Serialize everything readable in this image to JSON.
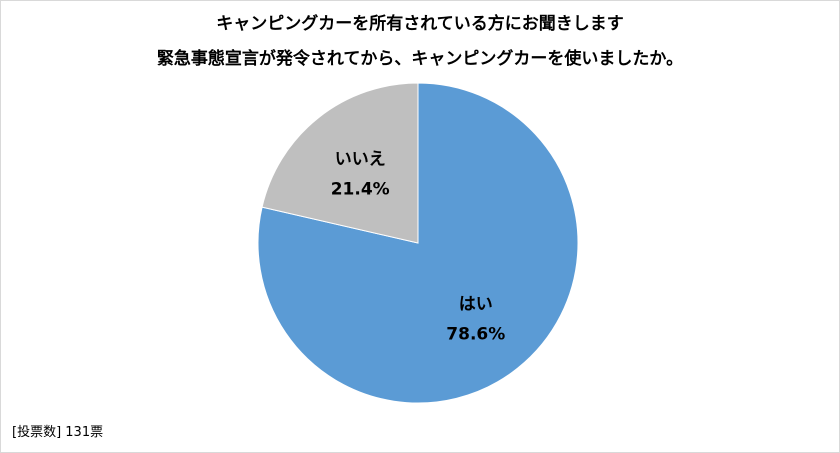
{
  "chart_data": {
    "type": "pie",
    "title_lines": [
      "キャンピングカーを所有されている方にお聞きします",
      "緊急事態宣言が発令されてから、キャンピングカーを使いましたか。"
    ],
    "slices": [
      {
        "label": "はい",
        "value": 78.6,
        "display": "78.6%",
        "color": "#5b9bd5"
      },
      {
        "label": "いいえ",
        "value": 21.4,
        "display": "21.4%",
        "color": "#bfbfbf"
      }
    ],
    "start_angle": "12 o'clock",
    "direction": "clockwise",
    "legend": "none"
  },
  "footnote": "[投票数] 131票"
}
